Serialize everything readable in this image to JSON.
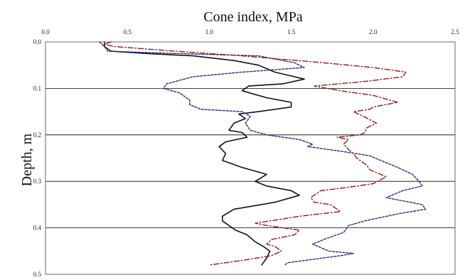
{
  "chart_data": {
    "type": "line",
    "xlabel": "Cone index, MPa",
    "ylabel": "Depth, m",
    "xlim": [
      0,
      2.5
    ],
    "ylim": [
      0.5,
      0
    ],
    "x_axis_position": "top",
    "y_axis_inverted": true,
    "x_ticks": [
      "0.0",
      "0.5",
      "1.0",
      "1.5",
      "2.0",
      "2.5"
    ],
    "y_ticks": [
      "0.0",
      "0.1",
      "0.2",
      "0.3",
      "0.4",
      "0.5"
    ],
    "grid": "horizontal",
    "legend": "none",
    "series": [
      {
        "style": "solid",
        "color": "#111111",
        "points": [
          [
            0.36,
            0.0
          ],
          [
            0.36,
            0.01
          ],
          [
            0.4,
            0.02
          ],
          [
            0.62,
            0.025
          ],
          [
            0.9,
            0.03
          ],
          [
            1.15,
            0.04
          ],
          [
            1.3,
            0.05
          ],
          [
            1.4,
            0.065
          ],
          [
            1.52,
            0.075
          ],
          [
            1.58,
            0.08
          ],
          [
            1.45,
            0.09
          ],
          [
            1.24,
            0.095
          ],
          [
            1.2,
            0.105
          ],
          [
            1.35,
            0.12
          ],
          [
            1.5,
            0.13
          ],
          [
            1.5,
            0.14
          ],
          [
            1.3,
            0.15
          ],
          [
            1.18,
            0.155
          ],
          [
            1.22,
            0.165
          ],
          [
            1.15,
            0.175
          ],
          [
            1.12,
            0.19
          ],
          [
            1.2,
            0.195
          ],
          [
            1.23,
            0.205
          ],
          [
            1.1,
            0.215
          ],
          [
            1.06,
            0.225
          ],
          [
            1.1,
            0.24
          ],
          [
            1.08,
            0.255
          ],
          [
            1.2,
            0.27
          ],
          [
            1.35,
            0.285
          ],
          [
            1.28,
            0.3
          ],
          [
            1.35,
            0.31
          ],
          [
            1.5,
            0.32
          ],
          [
            1.55,
            0.33
          ],
          [
            1.4,
            0.345
          ],
          [
            1.15,
            0.36
          ],
          [
            1.08,
            0.375
          ],
          [
            1.08,
            0.385
          ],
          [
            1.12,
            0.395
          ],
          [
            1.16,
            0.405
          ],
          [
            1.23,
            0.415
          ],
          [
            1.28,
            0.43
          ],
          [
            1.33,
            0.44
          ],
          [
            1.37,
            0.45
          ],
          [
            1.35,
            0.465
          ],
          [
            1.32,
            0.48
          ]
        ]
      },
      {
        "style": "dash",
        "color": "#2b2b80",
        "points": [
          [
            0.33,
            0.0
          ],
          [
            0.36,
            0.01
          ],
          [
            0.38,
            0.02
          ],
          [
            0.8,
            0.025
          ],
          [
            1.3,
            0.03
          ],
          [
            1.52,
            0.045
          ],
          [
            1.58,
            0.055
          ],
          [
            1.2,
            0.065
          ],
          [
            0.9,
            0.075
          ],
          [
            0.74,
            0.09
          ],
          [
            0.72,
            0.1
          ],
          [
            0.82,
            0.11
          ],
          [
            0.88,
            0.125
          ],
          [
            0.88,
            0.135
          ],
          [
            0.95,
            0.145
          ],
          [
            1.2,
            0.15
          ],
          [
            1.25,
            0.16
          ],
          [
            1.22,
            0.175
          ],
          [
            1.25,
            0.19
          ],
          [
            1.35,
            0.2
          ],
          [
            1.55,
            0.21
          ],
          [
            1.63,
            0.22
          ],
          [
            1.6,
            0.225
          ],
          [
            1.8,
            0.235
          ],
          [
            1.98,
            0.245
          ],
          [
            2.08,
            0.26
          ],
          [
            2.15,
            0.27
          ],
          [
            2.24,
            0.285
          ],
          [
            2.28,
            0.3
          ],
          [
            2.3,
            0.31
          ],
          [
            2.18,
            0.32
          ],
          [
            2.08,
            0.335
          ],
          [
            2.3,
            0.35
          ],
          [
            2.32,
            0.36
          ],
          [
            2.15,
            0.37
          ],
          [
            1.95,
            0.385
          ],
          [
            1.85,
            0.395
          ],
          [
            1.82,
            0.41
          ],
          [
            1.7,
            0.425
          ],
          [
            1.63,
            0.435
          ],
          [
            1.73,
            0.45
          ],
          [
            1.88,
            0.455
          ],
          [
            1.8,
            0.46
          ],
          [
            1.48,
            0.475
          ],
          [
            1.46,
            0.48
          ]
        ]
      },
      {
        "style": "dash-dot",
        "color": "#8b1a1a",
        "points": [
          [
            0.4,
            0.0
          ],
          [
            0.36,
            0.005
          ],
          [
            0.42,
            0.01
          ],
          [
            0.8,
            0.02
          ],
          [
            1.2,
            0.03
          ],
          [
            1.7,
            0.045
          ],
          [
            2.0,
            0.055
          ],
          [
            2.2,
            0.065
          ],
          [
            2.18,
            0.075
          ],
          [
            1.95,
            0.085
          ],
          [
            1.64,
            0.095
          ],
          [
            1.8,
            0.105
          ],
          [
            2.0,
            0.115
          ],
          [
            2.15,
            0.13
          ],
          [
            2.0,
            0.14
          ],
          [
            1.98,
            0.145
          ],
          [
            1.88,
            0.15
          ],
          [
            1.94,
            0.16
          ],
          [
            2.02,
            0.175
          ],
          [
            1.96,
            0.185
          ],
          [
            1.95,
            0.195
          ],
          [
            1.92,
            0.2
          ],
          [
            1.78,
            0.205
          ],
          [
            1.85,
            0.21
          ],
          [
            1.82,
            0.22
          ],
          [
            1.86,
            0.235
          ],
          [
            1.88,
            0.24
          ],
          [
            1.9,
            0.25
          ],
          [
            1.96,
            0.265
          ],
          [
            1.98,
            0.275
          ],
          [
            2.08,
            0.29
          ],
          [
            2.0,
            0.305
          ],
          [
            1.8,
            0.315
          ],
          [
            1.68,
            0.32
          ],
          [
            1.62,
            0.335
          ],
          [
            1.64,
            0.345
          ],
          [
            1.74,
            0.35
          ],
          [
            1.8,
            0.365
          ],
          [
            1.55,
            0.375
          ],
          [
            1.28,
            0.39
          ],
          [
            1.35,
            0.395
          ],
          [
            1.55,
            0.405
          ],
          [
            1.52,
            0.415
          ],
          [
            1.38,
            0.425
          ],
          [
            1.35,
            0.435
          ],
          [
            1.4,
            0.44
          ],
          [
            1.44,
            0.45
          ],
          [
            1.38,
            0.46
          ],
          [
            1.2,
            0.47
          ],
          [
            1.0,
            0.48
          ]
        ]
      }
    ]
  }
}
